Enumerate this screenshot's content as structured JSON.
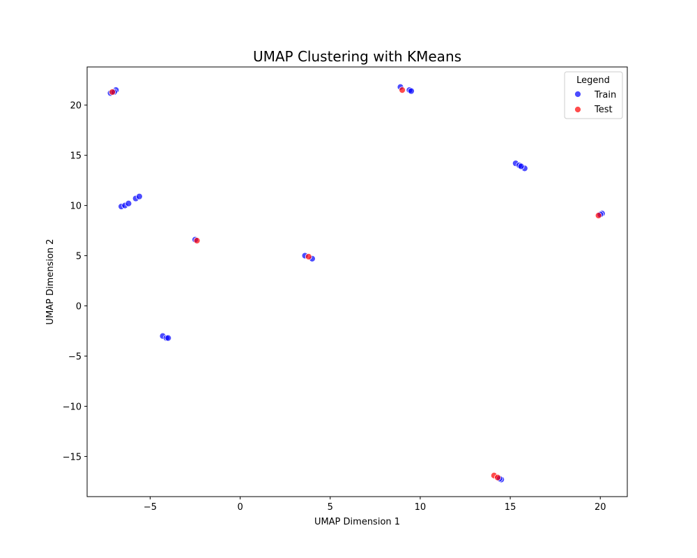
{
  "chart_data": {
    "type": "scatter",
    "title": "UMAP Clustering with KMeans",
    "xlabel": "UMAP Dimension 1",
    "ylabel": "UMAP Dimension 2",
    "xlim": [
      -8.5,
      21.5
    ],
    "ylim": [
      -19.0,
      23.8
    ],
    "x_ticks": [
      -5,
      0,
      5,
      10,
      15,
      20
    ],
    "y_ticks": [
      -15,
      -10,
      -5,
      0,
      5,
      10,
      15,
      20
    ],
    "x_tick_labels": [
      "−5",
      "0",
      "5",
      "10",
      "15",
      "20"
    ],
    "y_tick_labels": [
      "−15",
      "−10",
      "−5",
      "0",
      "5",
      "10",
      "15",
      "20"
    ],
    "grid": false,
    "legend": {
      "title": "Legend",
      "placement": "top-right"
    },
    "series": [
      {
        "name": "Train",
        "color": "#0000ff",
        "points": [
          [
            -7.2,
            21.2
          ],
          [
            -6.9,
            21.5
          ],
          [
            -7.0,
            21.3
          ],
          [
            8.9,
            21.8
          ],
          [
            9.4,
            21.5
          ],
          [
            9.5,
            21.4
          ],
          [
            15.3,
            14.2
          ],
          [
            15.5,
            14.0
          ],
          [
            15.8,
            13.7
          ],
          [
            15.6,
            13.9
          ],
          [
            20.1,
            9.2
          ],
          [
            20.0,
            9.1
          ],
          [
            -6.6,
            9.9
          ],
          [
            -6.4,
            10.0
          ],
          [
            -6.2,
            10.2
          ],
          [
            -5.8,
            10.7
          ],
          [
            -5.6,
            10.9
          ],
          [
            -2.5,
            6.6
          ],
          [
            3.6,
            5.0
          ],
          [
            4.0,
            4.7
          ],
          [
            -4.3,
            -3.0
          ],
          [
            -4.1,
            -3.2
          ],
          [
            -4.0,
            -3.2
          ],
          [
            14.5,
            -17.3
          ],
          [
            14.4,
            -17.2
          ]
        ]
      },
      {
        "name": "Test",
        "color": "#ff0000",
        "points": [
          [
            -7.1,
            21.3
          ],
          [
            9.0,
            21.5
          ],
          [
            19.9,
            9.0
          ],
          [
            -2.4,
            6.5
          ],
          [
            3.8,
            4.9
          ],
          [
            14.1,
            -16.9
          ],
          [
            14.3,
            -17.1
          ]
        ]
      }
    ]
  }
}
